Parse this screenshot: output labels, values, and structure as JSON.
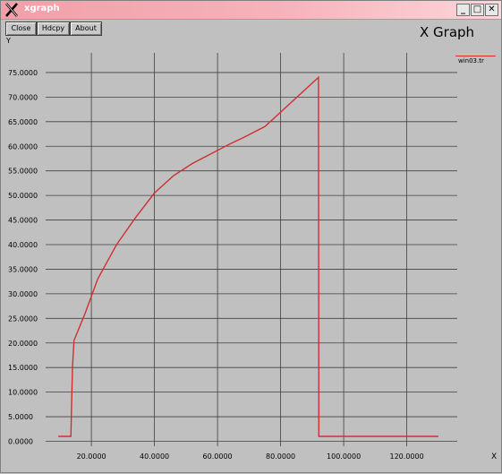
{
  "window": {
    "title": "xgraph",
    "icon": "x-logo-icon",
    "controls": [
      "minimize-icon",
      "maximize-icon",
      "close-icon"
    ]
  },
  "toolbar": {
    "close_label": "Close",
    "hdcpy_label": "Hdcpy",
    "about_label": "About"
  },
  "graph_title": "X Graph",
  "legend": {
    "label": "win03.tr",
    "color": "#d03030"
  },
  "colors": {
    "background": "#c0c0c0",
    "grid": "#404040",
    "series": "#d03030",
    "titlebar": "#f0a0a8"
  },
  "chart_data": {
    "type": "line",
    "title": "X Graph",
    "xlabel": "X",
    "ylabel": "Y",
    "xlim": [
      5.5,
      136
    ],
    "ylim": [
      -1,
      79
    ],
    "grid": true,
    "legend_position": "top-right",
    "x_ticks": [
      "20.0000",
      "40.0000",
      "60.0000",
      "80.0000",
      "100.0000",
      "120.0000"
    ],
    "x_tick_values": [
      20,
      40,
      60,
      80,
      100,
      120
    ],
    "y_ticks": [
      "0.0000",
      "5.0000",
      "10.0000",
      "15.0000",
      "20.0000",
      "25.0000",
      "30.0000",
      "35.0000",
      "40.0000",
      "45.0000",
      "50.0000",
      "55.0000",
      "60.0000",
      "65.0000",
      "70.0000",
      "75.0000"
    ],
    "y_tick_values": [
      0,
      5,
      10,
      15,
      20,
      25,
      30,
      35,
      40,
      45,
      50,
      55,
      60,
      65,
      70,
      75
    ],
    "series": [
      {
        "name": "win03.tr",
        "x": [
          9.5,
          13.5,
          14.0,
          14.5,
          18,
          22,
          28,
          34,
          40,
          46,
          52,
          58,
          64,
          68,
          75,
          92,
          92.1,
          130
        ],
        "y": [
          1,
          1,
          15,
          20.5,
          26,
          33,
          40,
          45.5,
          50.5,
          54,
          56.5,
          58.5,
          60.5,
          61.7,
          64,
          74,
          1,
          1
        ]
      }
    ]
  }
}
